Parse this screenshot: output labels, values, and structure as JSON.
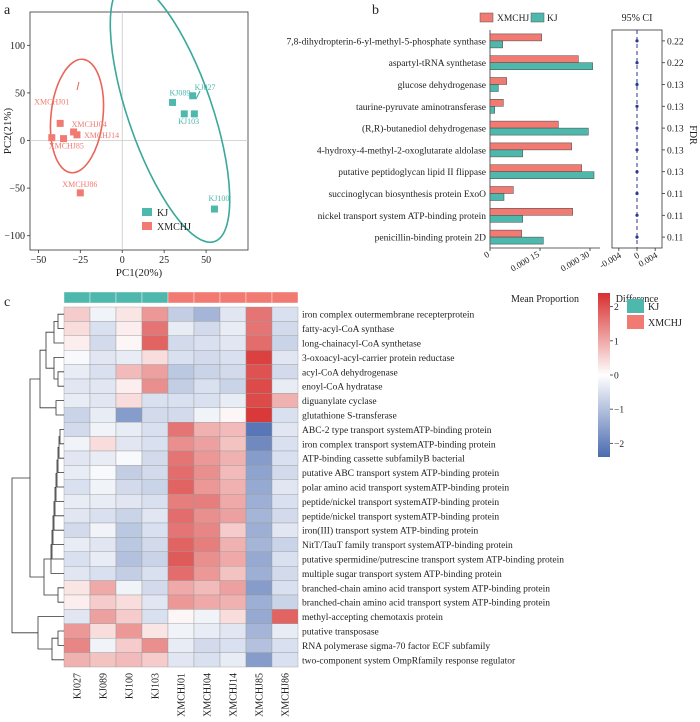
{
  "panels": {
    "a": "a",
    "b": "b",
    "c": "c"
  },
  "colors": {
    "kj": "#4fb8ad",
    "xmchj": "#f17a72",
    "kj_ellipse": "#3aa89b",
    "xmchj_ellipse": "#e8655b",
    "diff_dot": "#2a3a8f"
  },
  "chart_data": [
    {
      "type": "scatter",
      "panel": "a",
      "title": "",
      "xlabel": "PC1(20%)",
      "ylabel": "PC2(21%)",
      "xlim": [
        -55,
        75
      ],
      "ylim": [
        -115,
        135
      ],
      "xticks": [
        -50,
        -25,
        0,
        25,
        50
      ],
      "yticks": [
        100,
        50,
        0,
        -50,
        -100
      ],
      "grid": false,
      "legend_position": "bottom-center",
      "series": [
        {
          "name": "KJ",
          "points": [
            {
              "label": "KJ089",
              "x": 30,
              "y": 40
            },
            {
              "label": "KJ027",
              "x": 42,
              "y": 47
            },
            {
              "label": "KJ103",
              "x": 37,
              "y": 28
            },
            {
              "label": "",
              "x": 43,
              "y": 28
            },
            {
              "label": "KJ100",
              "x": 55,
              "y": -72
            }
          ]
        },
        {
          "name": "XMCHJ",
          "points": [
            {
              "label": "XMCHJ01",
              "x": -37,
              "y": 18
            },
            {
              "label": "XMCHJ04",
              "x": -29,
              "y": 9
            },
            {
              "label": "XMCHJ14",
              "x": -27,
              "y": 6
            },
            {
              "label": "XMCHJ85",
              "x": -42,
              "y": 3
            },
            {
              "label": "",
              "x": -35,
              "y": 2
            },
            {
              "label": "XMCHJ86",
              "x": -25,
              "y": -55
            }
          ]
        }
      ]
    },
    {
      "type": "bar",
      "panel": "b",
      "orientation": "horizontal",
      "xlabel": "Mean Proportion",
      "xticks": [
        "0",
        "0.000 15",
        "0.000 30"
      ],
      "xlim": [
        0,
        0.00033
      ],
      "legend_position": "top",
      "categories": [
        "7,8-dihydropterin-6-yl-methyl-5-phosphate synthase",
        "aspartyl-tRNA synthetase",
        "glucose dehydrogenase",
        "taurine-pyruvate aminotransferase",
        "(R,R)-butanediol dehydrogenase",
        "4-hydroxy-4-methyl-2-oxoglutarate aldolase",
        "putative peptidoglycan lipid II flippase",
        "succinoglycan biosynthesis protein ExoO",
        "nickel transport system ATP-binding protein",
        "penicillin-binding protein 2D"
      ],
      "series": [
        {
          "name": "XMCHJ",
          "values": [
            0.000155,
            0.000265,
            5e-05,
            4e-05,
            0.000205,
            0.000245,
            0.000275,
            7e-05,
            0.000248,
            9.5e-05
          ]
        },
        {
          "name": "KJ",
          "values": [
            3.8e-05,
            0.000308,
            2.5e-05,
            1.4e-05,
            0.000295,
            9.8e-05,
            0.000312,
            4.2e-05,
            9.8e-05,
            0.00016
          ]
        }
      ]
    },
    {
      "type": "scatter",
      "panel": "b-difference",
      "title": "95% CI",
      "xlabel": "Difference",
      "xticks": [
        "-0.004",
        "0",
        "0.004"
      ],
      "xlim": [
        -0.0055,
        0.0055
      ],
      "values": [
        0,
        0,
        0,
        0,
        0,
        0,
        0,
        0,
        0,
        0
      ],
      "fdr_label": "FDR",
      "fdr": [
        "0.22",
        "0.22",
        "0.13",
        "0.13",
        "0.13",
        "0.13",
        "0.13",
        "0.11",
        "0.11",
        "0.11"
      ]
    },
    {
      "type": "heatmap",
      "panel": "c",
      "columns": [
        "KJ027",
        "KJ089",
        "KJ100",
        "KJ103",
        "XMCHJ01",
        "XMCHJ04",
        "XMCHJ14",
        "XMCHJ85",
        "XMCHJ86"
      ],
      "column_groups": [
        "KJ",
        "KJ",
        "KJ",
        "KJ",
        "XMCHJ",
        "XMCHJ",
        "XMCHJ",
        "XMCHJ",
        "XMCHJ"
      ],
      "legend": [
        "KJ",
        "XMCHJ"
      ],
      "colorbar_range": [
        -2.4,
        2.4
      ],
      "colorbar_ticks": [
        "2",
        "1",
        "0",
        "−1",
        "−2"
      ],
      "rows": [
        "iron complex outermembrane recepterprotein",
        "fatty-acyl-CoA synthase",
        "long-chainacyl-CoA synthetase",
        "3-oxoacyl-acyl-carrier protein reductase",
        "acyl-CoA dehydrogenase",
        "enoyl-CoA hydratase",
        "diguanylate cyclase",
        "glutathione S-transferase",
        "ABC-2 type transport systemATP-binding protein",
        "iron complex transport systemATP-binding protein",
        "ATP-binding cassette subfamilyB bacterial",
        "putative ABC transport system ATP-binding protein",
        "polar amino acid transport systemATP-binding protein",
        "peptide/nickel transport systemATP-binding protein",
        "peptide/nickel transport systemATP-binding protein",
        "iron(III) transport system ATP-binding protein",
        "NitT/TauT family transport systemATP-binding protein",
        "putative spermidine/putrescine transport system ATP-binding protein",
        "multiple sugar transport system ATP-binding protein",
        "branched-chain amino acid transport system ATP-binding protein",
        "branched-chain amino acid transport system ATP-binding protein",
        "methyl-accepting chemotaxis protein",
        "putative transposase",
        "RNA polymerase sigma-70 factor ECF subfamily",
        "two-component system OmpRfamily response regulator"
      ],
      "values": [
        [
          0.6,
          -0.2,
          0.3,
          1.2,
          -0.8,
          -1.2,
          -0.4,
          1.6,
          -0.5
        ],
        [
          0.4,
          -0.5,
          0.2,
          1.6,
          -0.3,
          -0.6,
          -0.3,
          1.6,
          -0.6
        ],
        [
          0.2,
          -0.6,
          0.1,
          1.8,
          -0.6,
          -0.5,
          -0.4,
          1.7,
          -0.7
        ],
        [
          -0.1,
          -0.4,
          -0.3,
          0.4,
          -0.5,
          -0.6,
          -0.5,
          2.2,
          -0.4
        ],
        [
          -0.3,
          -0.5,
          0.8,
          1.1,
          -0.9,
          -0.7,
          -0.6,
          2.0,
          -0.6
        ],
        [
          -0.4,
          -0.4,
          0.2,
          1.3,
          -0.8,
          -0.5,
          -0.7,
          2.1,
          -0.3
        ],
        [
          -0.3,
          -0.4,
          0.4,
          -0.5,
          -0.5,
          -0.5,
          -0.3,
          2.1,
          0.9
        ],
        [
          -0.7,
          -0.3,
          -1.6,
          -0.6,
          -0.6,
          -0.2,
          0.1,
          2.3,
          -0.5
        ],
        [
          -0.6,
          -0.2,
          -0.3,
          -0.5,
          1.6,
          0.9,
          0.8,
          -2.2,
          -0.4
        ],
        [
          -0.2,
          0.4,
          -0.4,
          -0.5,
          1.3,
          1.1,
          0.7,
          -1.9,
          -0.5
        ],
        [
          -0.4,
          -0.3,
          -0.1,
          -0.6,
          1.6,
          1.2,
          0.9,
          -1.6,
          -0.5
        ],
        [
          -0.3,
          -0.1,
          -0.8,
          -0.6,
          1.7,
          1.3,
          0.8,
          -1.5,
          -0.6
        ],
        [
          -0.5,
          -0.2,
          -0.6,
          -0.7,
          1.8,
          1.2,
          0.9,
          -1.4,
          -0.4
        ],
        [
          -0.3,
          -0.3,
          -0.4,
          -0.5,
          1.5,
          1.5,
          1.0,
          -1.3,
          -0.5
        ],
        [
          -0.4,
          -0.5,
          -0.7,
          -0.4,
          1.7,
          1.3,
          1.1,
          -1.2,
          -0.6
        ],
        [
          -0.6,
          -0.2,
          -0.9,
          -0.5,
          1.6,
          1.4,
          0.6,
          -1.3,
          -0.4
        ],
        [
          -0.3,
          -0.4,
          -0.9,
          -0.6,
          1.8,
          1.5,
          0.9,
          -1.2,
          -0.7
        ],
        [
          -0.5,
          -0.3,
          -1.0,
          -0.7,
          1.9,
          1.3,
          1.0,
          -1.4,
          -0.5
        ],
        [
          -0.4,
          -0.5,
          -0.8,
          -0.5,
          1.7,
          1.2,
          0.7,
          -1.3,
          -0.6
        ],
        [
          0.3,
          1.0,
          -0.2,
          -0.6,
          1.0,
          0.8,
          1.1,
          -1.6,
          -0.5
        ],
        [
          0.2,
          0.6,
          0.4,
          -0.4,
          1.2,
          1.0,
          0.9,
          -1.3,
          -0.7
        ],
        [
          -0.4,
          1.1,
          0.6,
          -0.5,
          0.1,
          -0.2,
          0.4,
          -1.4,
          1.8
        ],
        [
          1.2,
          0.4,
          1.2,
          0.3,
          -0.2,
          -0.3,
          -0.4,
          -1.2,
          -0.3
        ],
        [
          1.4,
          -0.2,
          0.6,
          1.3,
          -0.3,
          -0.6,
          -0.5,
          -1.0,
          -0.5
        ],
        [
          0.9,
          0.7,
          0.8,
          0.6,
          -0.4,
          -0.5,
          -0.3,
          -1.6,
          -0.5
        ]
      ]
    }
  ]
}
